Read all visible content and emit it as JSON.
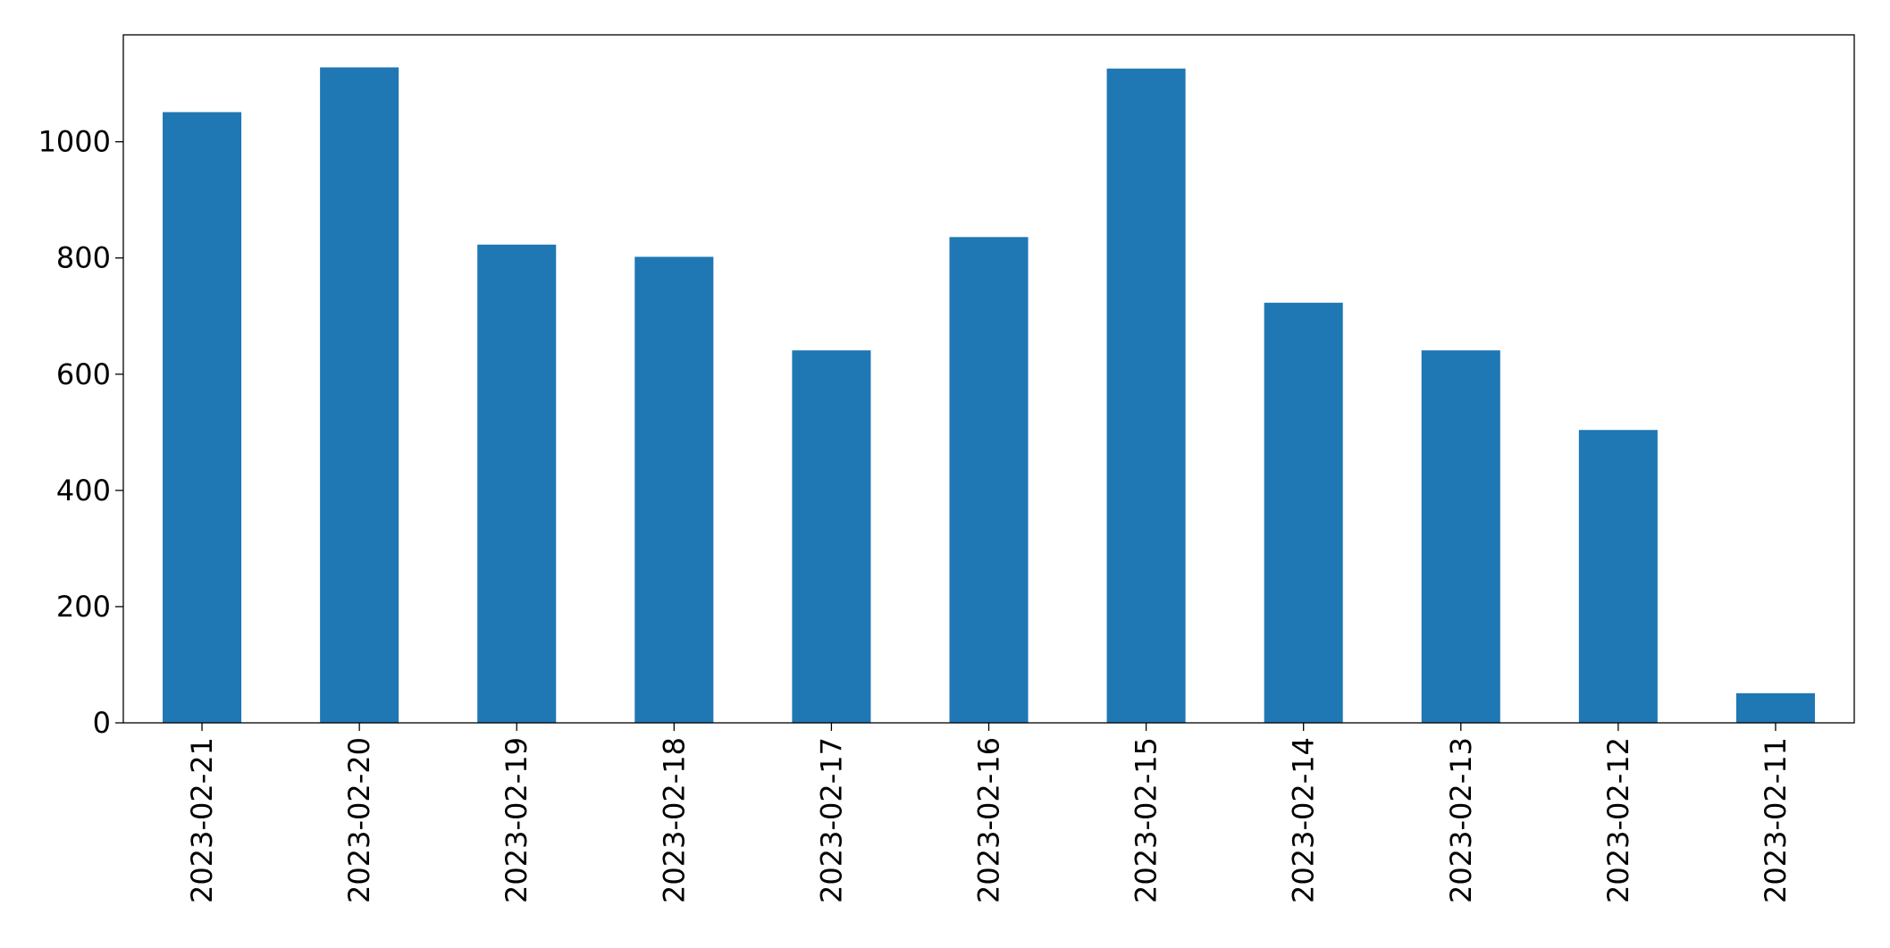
{
  "chart_data": {
    "type": "bar",
    "categories": [
      "2023-02-21",
      "2023-02-20",
      "2023-02-19",
      "2023-02-18",
      "2023-02-17",
      "2023-02-16",
      "2023-02-15",
      "2023-02-14",
      "2023-02-13",
      "2023-02-12",
      "2023-02-11"
    ],
    "values": [
      1051,
      1128,
      823,
      802,
      641,
      836,
      1126,
      723,
      641,
      504,
      51
    ],
    "color": "#1f77b4",
    "ylim": [
      0,
      1184
    ],
    "yticks": [
      0,
      200,
      400,
      600,
      800,
      1000
    ],
    "grid": false
  }
}
